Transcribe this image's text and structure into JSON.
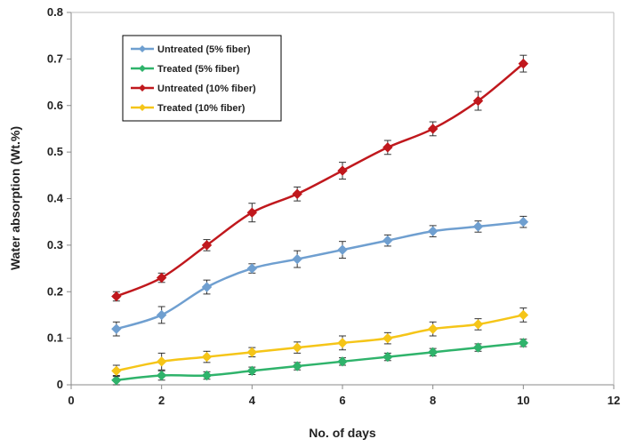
{
  "chart_data": {
    "type": "line",
    "xlabel": "No. of days",
    "ylabel": "Water absorption (Wt.%)",
    "xlim": [
      0,
      12
    ],
    "ylim": [
      0,
      0.8
    ],
    "x_ticks": [
      "0",
      "2",
      "4",
      "6",
      "8",
      "10",
      "12"
    ],
    "y_ticks": [
      "0",
      "0.1",
      "0.2",
      "0.3",
      "0.4",
      "0.5",
      "0.6",
      "0.7",
      "0.8"
    ],
    "grid": false,
    "legend_position": "top-left",
    "x": [
      1,
      2,
      3,
      4,
      5,
      6,
      7,
      8,
      9,
      10
    ],
    "series": [
      {
        "name": "Untreated (5% fiber)",
        "color": "#6f9fd0",
        "values": [
          0.12,
          0.15,
          0.21,
          0.25,
          0.27,
          0.29,
          0.31,
          0.33,
          0.34,
          0.35
        ],
        "errors": [
          0.015,
          0.018,
          0.015,
          0.01,
          0.018,
          0.018,
          0.012,
          0.012,
          0.012,
          0.012
        ]
      },
      {
        "name": "Treated (5% fiber)",
        "color": "#2fb36b",
        "values": [
          0.01,
          0.02,
          0.02,
          0.03,
          0.04,
          0.05,
          0.06,
          0.07,
          0.08,
          0.09
        ],
        "errors": [
          0.01,
          0.01,
          0.008,
          0.008,
          0.008,
          0.008,
          0.008,
          0.008,
          0.008,
          0.008
        ]
      },
      {
        "name": "Untreated (10% fiber)",
        "color": "#c0181d",
        "values": [
          0.19,
          0.23,
          0.3,
          0.37,
          0.41,
          0.46,
          0.51,
          0.55,
          0.61,
          0.69
        ],
        "errors": [
          0.01,
          0.01,
          0.012,
          0.02,
          0.015,
          0.018,
          0.015,
          0.015,
          0.02,
          0.018
        ]
      },
      {
        "name": "Treated (10% fiber)",
        "color": "#f5c518",
        "values": [
          0.03,
          0.05,
          0.06,
          0.07,
          0.08,
          0.09,
          0.1,
          0.12,
          0.13,
          0.15
        ],
        "errors": [
          0.012,
          0.018,
          0.012,
          0.01,
          0.012,
          0.015,
          0.012,
          0.015,
          0.012,
          0.015
        ]
      }
    ]
  }
}
